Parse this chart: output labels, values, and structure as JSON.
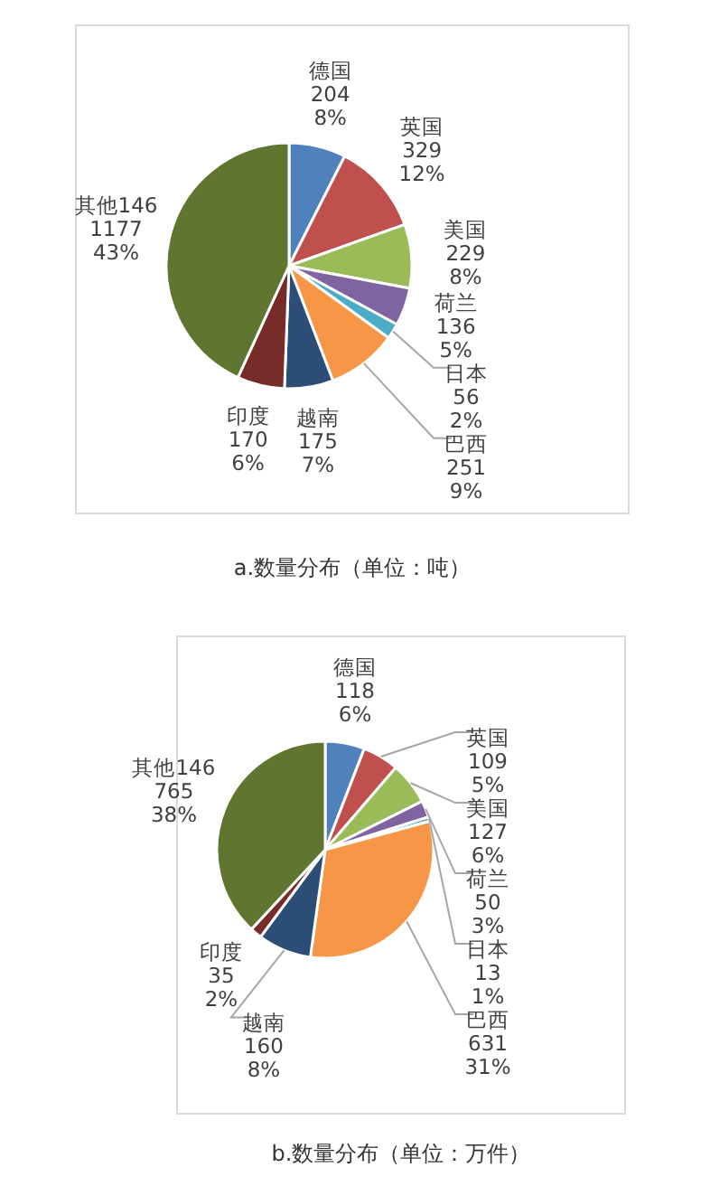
{
  "chart_data": [
    {
      "type": "pie",
      "title": "a.数量分布（单位：吨）",
      "categories": [
        "德国",
        "英国",
        "美国",
        "荷兰",
        "日本",
        "巴西",
        "越南",
        "印度",
        "其他146"
      ],
      "values": [
        204,
        329,
        229,
        136,
        56,
        251,
        175,
        170,
        1177
      ],
      "value_labels": [
        "204\n8%",
        "329\n12%",
        "229\n8%",
        "136\n5%",
        "56\n2%",
        "251\n9%",
        "175\n7%",
        "170\n6%",
        "1177\n43%"
      ],
      "colors": [
        "#4f81bd",
        "#c0504d",
        "#9bbb59",
        "#8064a2",
        "#4bacc6",
        "#f79646",
        "#2c4d75",
        "#772c2a",
        "#5f7530"
      ]
    },
    {
      "type": "pie",
      "title": "b.数量分布（单位：万件）",
      "categories": [
        "德国",
        "英国",
        "美国",
        "荷兰",
        "日本",
        "巴西",
        "越南",
        "印度",
        "其他146"
      ],
      "values": [
        118,
        109,
        127,
        50,
        13,
        631,
        160,
        35,
        765
      ],
      "value_labels": [
        "118\n6%",
        "109\n5%",
        "127\n6%",
        "50\n3%",
        "13\n1%",
        "631\n31%",
        "160\n8%",
        "35\n2%",
        "765\n38%"
      ],
      "colors": [
        "#4f81bd",
        "#c0504d",
        "#9bbb59",
        "#8064a2",
        "#4bacc6",
        "#f79646",
        "#2c4d75",
        "#772c2a",
        "#5f7530"
      ]
    }
  ]
}
